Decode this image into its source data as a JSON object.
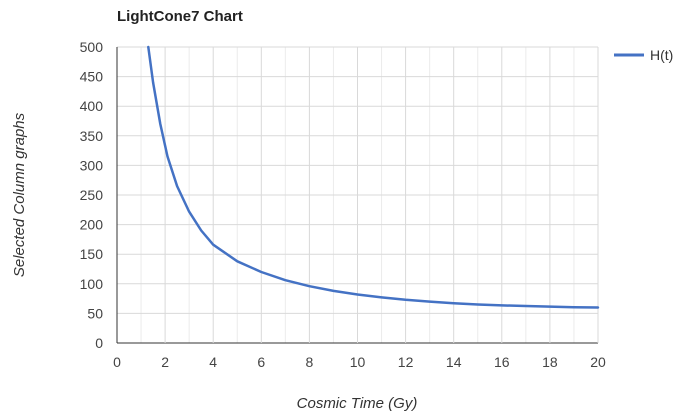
{
  "chart_data": {
    "type": "line",
    "title": "LightCone7 Chart",
    "xlabel": "Cosmic Time (Gy)",
    "ylabel": "Selected Column graphs",
    "xlim": [
      0,
      20
    ],
    "ylim": [
      0,
      500
    ],
    "x_ticks": [
      "0",
      "2",
      "4",
      "6",
      "8",
      "10",
      "12",
      "14",
      "16",
      "18",
      "20"
    ],
    "y_ticks": [
      "0",
      "50",
      "100",
      "150",
      "200",
      "250",
      "300",
      "350",
      "400",
      "450",
      "500"
    ],
    "grid": true,
    "legend_position": "right",
    "series": [
      {
        "name": "H(t)",
        "color": "#4472c4",
        "points": [
          {
            "x": 1.3,
            "y": 500
          },
          {
            "x": 1.5,
            "y": 440
          },
          {
            "x": 1.8,
            "y": 370
          },
          {
            "x": 2.1,
            "y": 315
          },
          {
            "x": 2.5,
            "y": 265
          },
          {
            "x": 3.0,
            "y": 222
          },
          {
            "x": 3.5,
            "y": 190
          },
          {
            "x": 4.0,
            "y": 166
          },
          {
            "x": 5.0,
            "y": 138
          },
          {
            "x": 6.0,
            "y": 120
          },
          {
            "x": 7.0,
            "y": 106
          },
          {
            "x": 8.0,
            "y": 96
          },
          {
            "x": 9.0,
            "y": 88
          },
          {
            "x": 10.0,
            "y": 82
          },
          {
            "x": 11.0,
            "y": 77
          },
          {
            "x": 12.0,
            "y": 73
          },
          {
            "x": 13.0,
            "y": 70
          },
          {
            "x": 14.0,
            "y": 67
          },
          {
            "x": 15.0,
            "y": 65
          },
          {
            "x": 16.0,
            "y": 63.5
          },
          {
            "x": 17.0,
            "y": 62.5
          },
          {
            "x": 18.0,
            "y": 61.5
          },
          {
            "x": 19.0,
            "y": 60.5
          },
          {
            "x": 20.0,
            "y": 60
          }
        ]
      }
    ]
  }
}
